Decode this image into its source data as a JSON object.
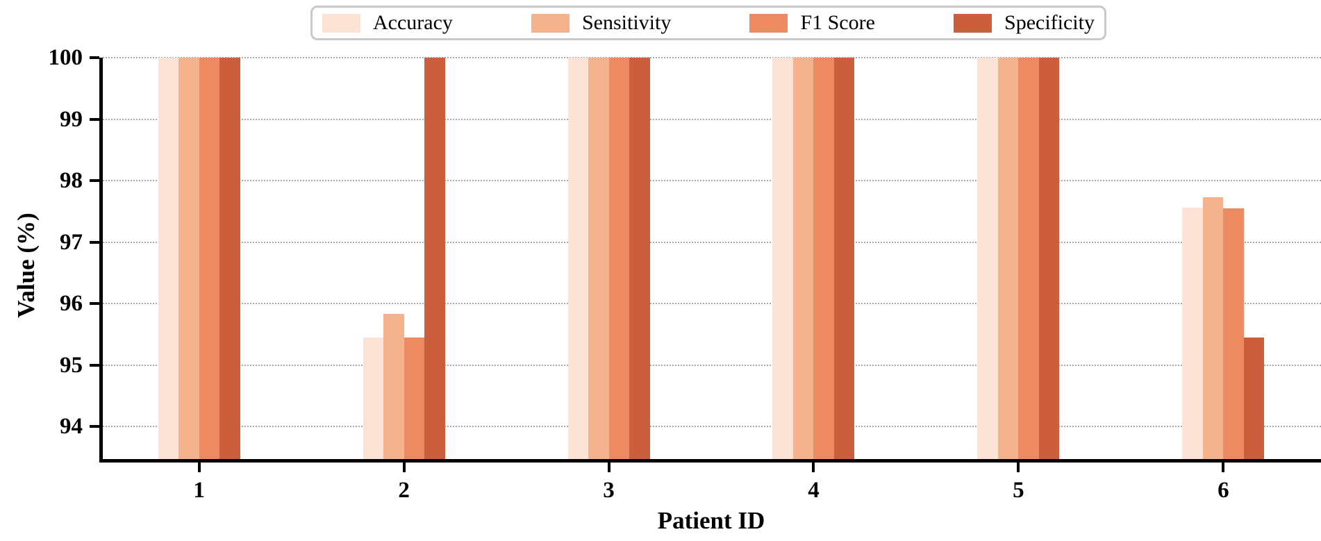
{
  "figure": {
    "background": "#ffffff",
    "gridline_color": "#a8a8a8",
    "axis_color": "#000000",
    "legend_border_color": "#c9c9c9"
  },
  "chart_data": {
    "type": "bar",
    "title": "",
    "xlabel": "Patient ID",
    "ylabel": "Value (%)",
    "categories": [
      "1",
      "2",
      "3",
      "4",
      "5",
      "6"
    ],
    "series": [
      {
        "name": "Accuracy",
        "color": "#fbe4d5",
        "values": [
          100,
          95.45,
          100,
          100,
          100,
          97.56
        ]
      },
      {
        "name": "Sensitivity",
        "color": "#f4b28d",
        "values": [
          100,
          95.83,
          100,
          100,
          100,
          97.73
        ]
      },
      {
        "name": "F1 Score",
        "color": "#ee8a62",
        "values": [
          100,
          95.45,
          100,
          100,
          100,
          97.55
        ]
      },
      {
        "name": "Specificity",
        "color": "#cb5e3c",
        "values": [
          100,
          100.0,
          100,
          100,
          100,
          95.45
        ]
      }
    ],
    "ylim": [
      93.45,
      100
    ],
    "yticks": [
      94,
      95,
      96,
      97,
      98,
      99,
      100
    ],
    "grid": "horizontal-dotted",
    "legend_position": "top-center",
    "legend_entries": [
      "Accuracy",
      "Sensitivity",
      "F1 Score",
      "Specificity"
    ]
  }
}
